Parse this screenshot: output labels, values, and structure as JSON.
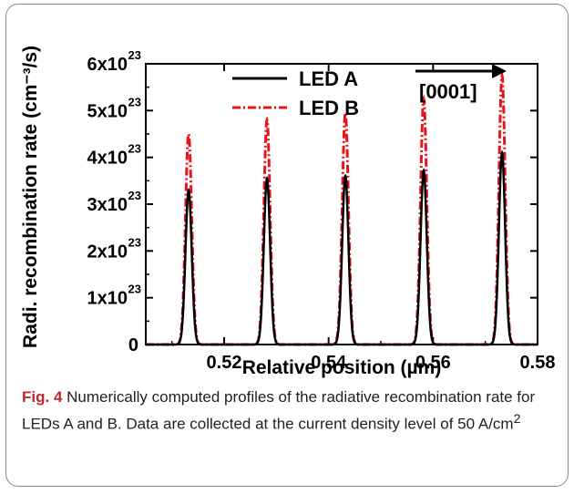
{
  "chart_data": {
    "type": "line",
    "xlabel": "Relative position (µm)",
    "ylabel": "Radi. recombination rate (cm⁻³/s)",
    "xlim": [
      0.505,
      0.58
    ],
    "ylim": [
      0,
      6e+23
    ],
    "x_ticks": [
      0.52,
      0.54,
      0.56,
      0.58
    ],
    "x_tick_labels": [
      "0.52",
      "0.54",
      "0.56",
      "0.58"
    ],
    "y_ticks": [
      0,
      1e+23,
      2e+23,
      3e+23,
      4e+23,
      5e+23,
      6e+23
    ],
    "y_tick_labels": [
      {
        "mant": "0",
        "exp": ""
      },
      {
        "mant": "1x10",
        "exp": "23"
      },
      {
        "mant": "2x10",
        "exp": "23"
      },
      {
        "mant": "3x10",
        "exp": "23"
      },
      {
        "mant": "4x10",
        "exp": "23"
      },
      {
        "mant": "5x10",
        "exp": "23"
      },
      {
        "mant": "6x10",
        "exp": "23"
      }
    ],
    "legend_position": "top-left",
    "peak_width_um": 0.0006,
    "series": [
      {
        "name": "LED A",
        "color": "#000000",
        "style": "solid",
        "peak_x": [
          0.5132,
          0.5282,
          0.5432,
          0.5582,
          0.5732
        ],
        "peak_y": [
          3.3e+23,
          3.55e+23,
          3.6e+23,
          3.72e+23,
          4.1e+23
        ]
      },
      {
        "name": "LED B",
        "color": "#e8141b",
        "style": "dash-dot",
        "peak_x": [
          0.5132,
          0.5282,
          0.5432,
          0.5582,
          0.5732
        ],
        "peak_y": [
          4.5e+23,
          4.8e+23,
          4.95e+23,
          5.25e+23,
          5.75e+23
        ]
      }
    ],
    "annotation": {
      "text": "[0001]",
      "direction": "right"
    }
  },
  "caption": {
    "fig_label": "Fig. 4",
    "text": " Numerically computed profiles of the radiative recombination rate for LEDs A and B. Data are collected at the current density level of 50 A/cm",
    "sup": "2"
  }
}
